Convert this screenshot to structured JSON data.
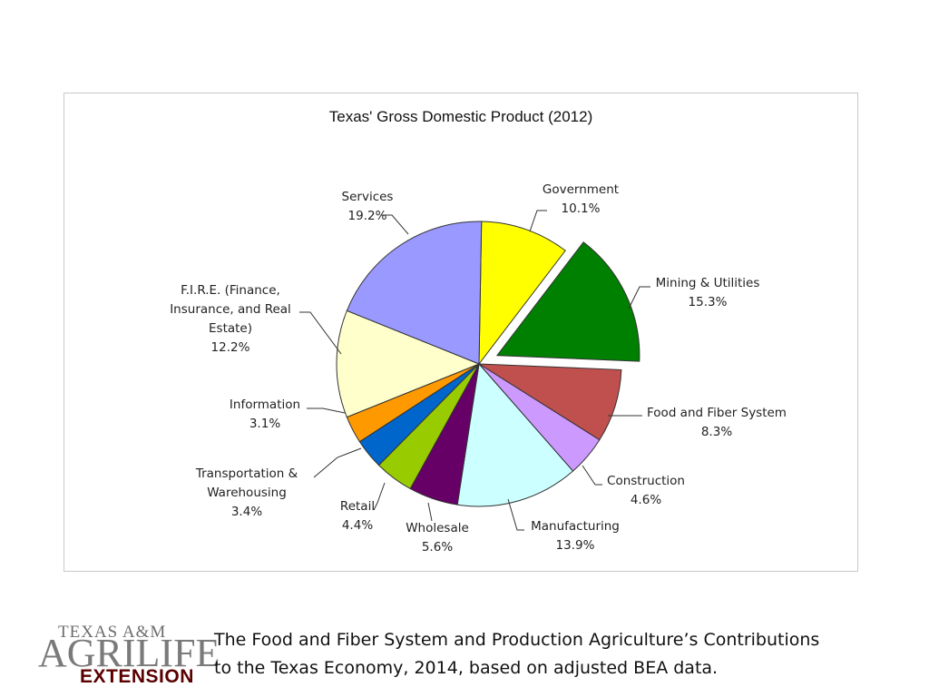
{
  "chart_data": {
    "type": "pie",
    "title": "Texas' Gross Domestic Product (2012)",
    "slices": [
      {
        "lines": [
          "Government",
          "10.1%"
        ],
        "value": 10.1,
        "color": "#ffff00"
      },
      {
        "lines": [
          "Mining & Utilities",
          "15.3%"
        ],
        "value": 15.3,
        "color": "#008000",
        "exploded": true
      },
      {
        "lines": [
          "Food and Fiber System",
          "8.3%"
        ],
        "value": 8.3,
        "color": "#c0504d"
      },
      {
        "lines": [
          "Construction",
          "4.6%"
        ],
        "value": 4.6,
        "color": "#cc99ff"
      },
      {
        "lines": [
          "Manufacturing",
          "13.9%"
        ],
        "value": 13.9,
        "color": "#ccffff"
      },
      {
        "lines": [
          "Wholesale",
          "5.6%"
        ],
        "value": 5.6,
        "color": "#660066"
      },
      {
        "lines": [
          "Retail",
          "4.4%"
        ],
        "value": 4.4,
        "color": "#99cc00"
      },
      {
        "lines": [
          "Transportation &",
          "Warehousing",
          "3.4%"
        ],
        "value": 3.4,
        "color": "#0066cc"
      },
      {
        "lines": [
          "Information",
          "3.1%"
        ],
        "value": 3.1,
        "color": "#ff9900"
      },
      {
        "lines": [
          "F.I.R.E. (Finance,",
          "Insurance, and Real",
          "Estate)",
          "12.2%"
        ],
        "value": 12.2,
        "color": "#ffffcc"
      },
      {
        "lines": [
          "Services",
          "19.2%"
        ],
        "value": 19.2,
        "color": "#9999ff"
      }
    ],
    "legend": "none"
  },
  "logo": {
    "line1": "TEXAS A&M",
    "line2": "AGRILIFE",
    "line3": "EXTENSION"
  },
  "caption": {
    "line1": "The Food and Fiber System and Production Agriculture’s Contributions",
    "line2": "to the Texas Economy, 2014, based on adjusted BEA data."
  }
}
